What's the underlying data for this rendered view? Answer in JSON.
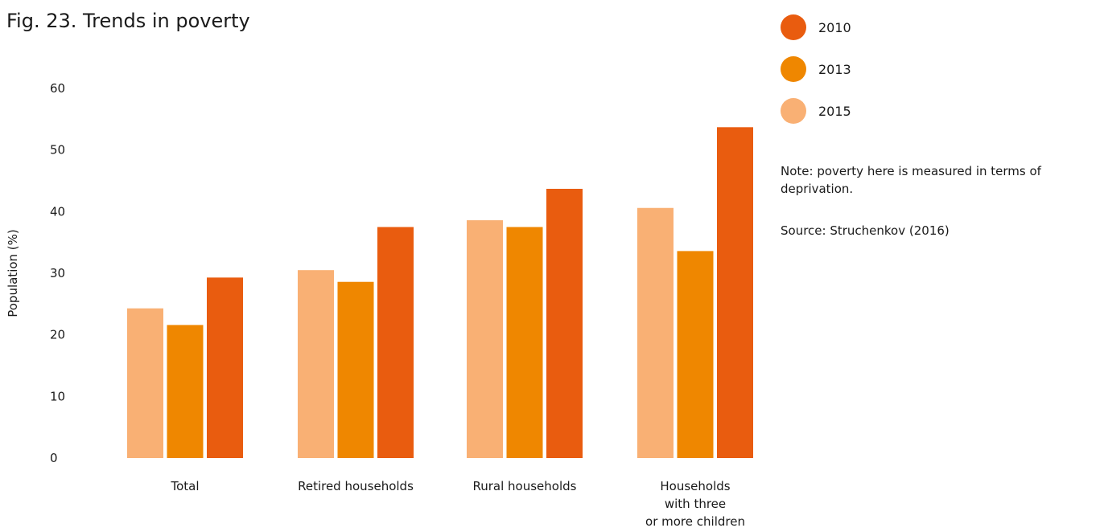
{
  "chart_data": {
    "type": "bar",
    "title": "Fig. 23. Trends in poverty",
    "ylabel": "Population (%)",
    "xlabel": "",
    "ylim": [
      0,
      60
    ],
    "yticks": [
      0,
      10,
      20,
      30,
      40,
      50,
      60
    ],
    "grid": false,
    "legend_position": "top-right",
    "categories": [
      "Total",
      "Retired households",
      "Rural households",
      "Households\nwith three\nor more children"
    ],
    "series": [
      {
        "name": "2015",
        "color": "#f9b074",
        "values": [
          24.3,
          30.5,
          38.6,
          40.6
        ]
      },
      {
        "name": "2013",
        "color": "#ef8700",
        "values": [
          21.6,
          28.6,
          37.5,
          33.6
        ]
      },
      {
        "name": "2010",
        "color": "#e95c0f",
        "values": [
          29.3,
          37.5,
          43.7,
          53.7
        ]
      }
    ],
    "legend_order": [
      "2010",
      "2013",
      "2015"
    ]
  },
  "notes": {
    "note": "Note: poverty here is measured in terms of deprivation.",
    "source": "Source: Struchenkov (2016)"
  }
}
